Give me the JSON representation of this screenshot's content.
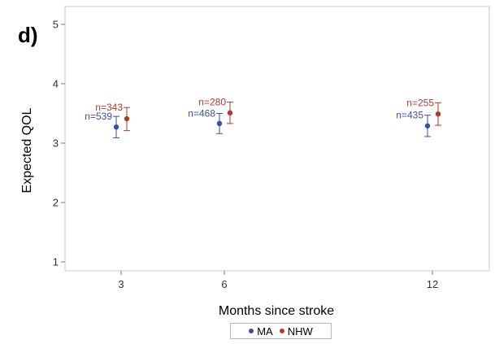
{
  "panel_label": "d)",
  "chart_data": {
    "type": "scatter",
    "xlabel": "Months since stroke",
    "ylabel": "Expected QOL",
    "categories": [
      "3",
      "6",
      "12"
    ],
    "x": [
      3,
      6,
      12
    ],
    "ylim": [
      0.85,
      5.3
    ],
    "yticks": [
      1,
      2,
      3,
      4,
      5
    ],
    "grid": false,
    "legend_placement": "bottom",
    "series": [
      {
        "name": "MA",
        "color": "#3b4ea5",
        "points": [
          {
            "x": 3,
            "y": 3.27,
            "low": 3.09,
            "high": 3.45,
            "label": "n=539"
          },
          {
            "x": 6,
            "y": 3.33,
            "low": 3.16,
            "high": 3.5,
            "label": "n=468"
          },
          {
            "x": 12,
            "y": 3.29,
            "low": 3.11,
            "high": 3.47,
            "label": "n=435"
          }
        ]
      },
      {
        "name": "NHW",
        "color": "#b03a30",
        "points": [
          {
            "x": 3,
            "y": 3.41,
            "low": 3.21,
            "high": 3.6,
            "label": "n=343"
          },
          {
            "x": 6,
            "y": 3.51,
            "low": 3.33,
            "high": 3.69,
            "label": "n=280"
          },
          {
            "x": 12,
            "y": 3.49,
            "low": 3.3,
            "high": 3.68,
            "label": "n=255"
          }
        ]
      }
    ]
  }
}
